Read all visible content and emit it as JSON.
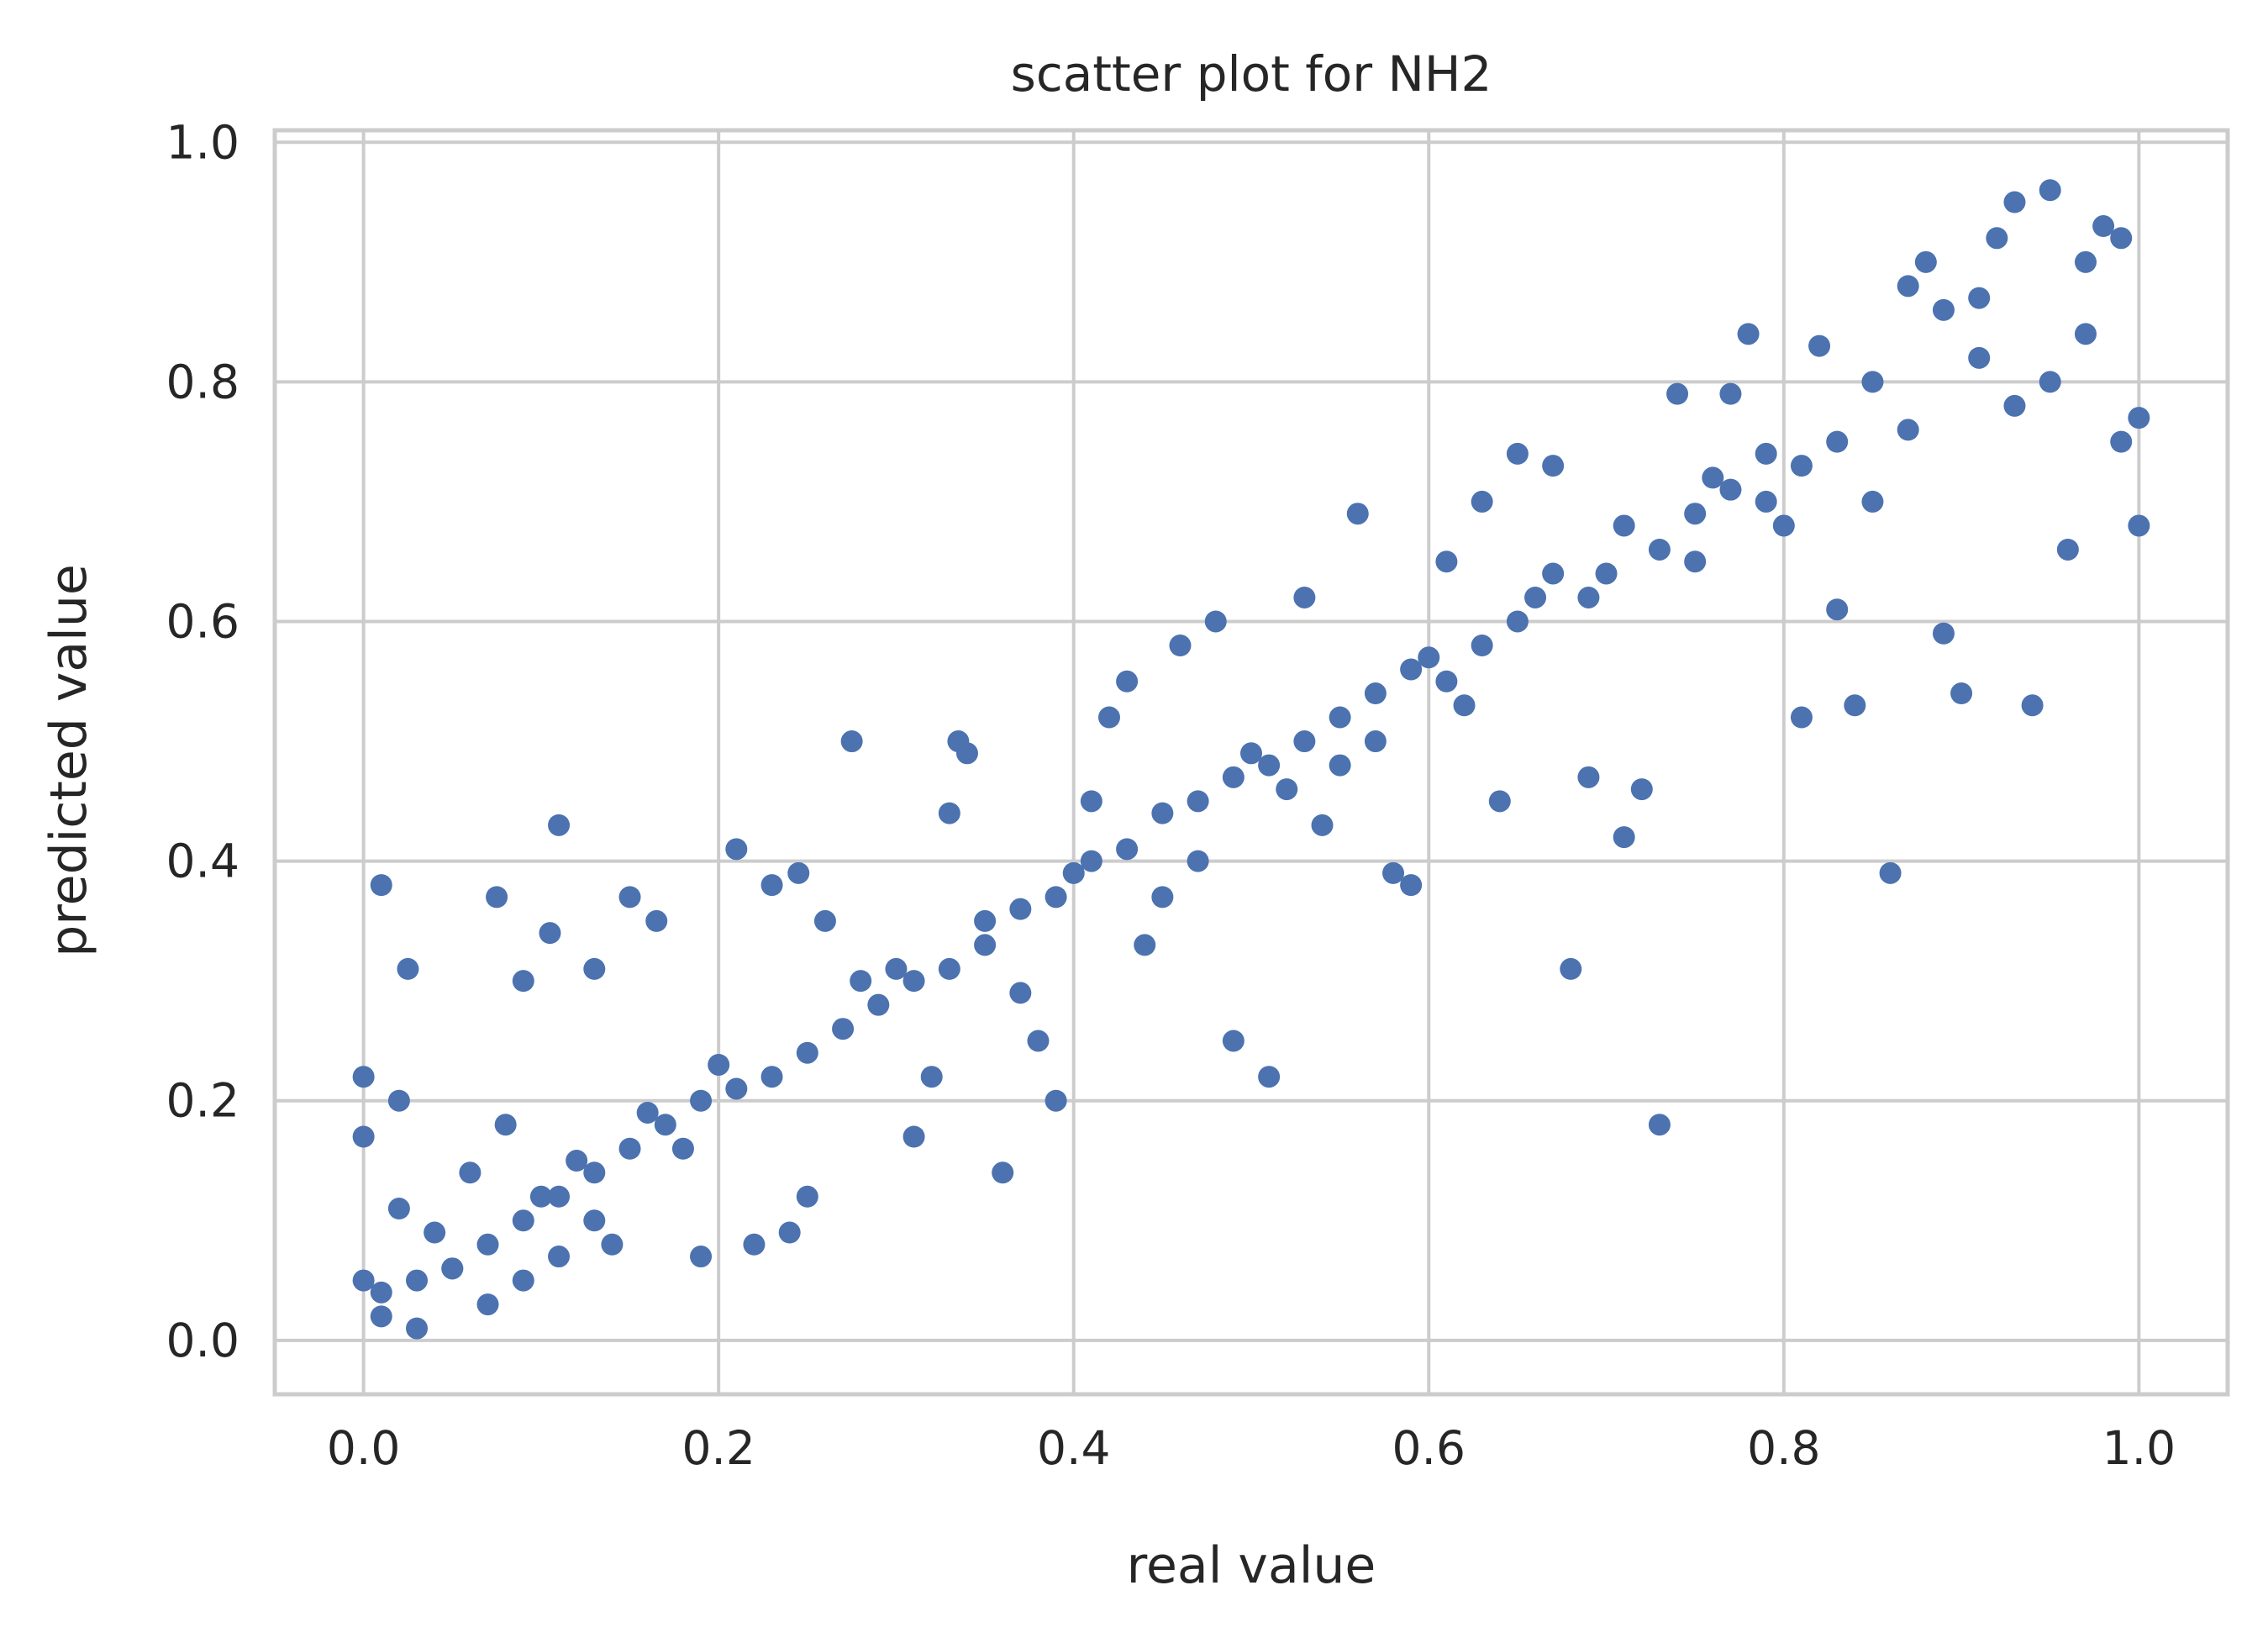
{
  "chart_data": {
    "type": "scatter",
    "title": "scatter plot for NH2",
    "xlabel": "real value",
    "ylabel": "predicted value",
    "xlim": [
      -0.05,
      1.05
    ],
    "ylim": [
      -0.045,
      1.01
    ],
    "xticks": [
      0.0,
      0.2,
      0.4,
      0.6,
      0.8,
      1.0
    ],
    "yticks": [
      0.0,
      0.2,
      0.4,
      0.6,
      0.8,
      1.0
    ],
    "xtick_labels": [
      "0.0",
      "0.2",
      "0.4",
      "0.6",
      "0.8",
      "1.0"
    ],
    "ytick_labels": [
      "0.0",
      "0.2",
      "0.4",
      "0.6",
      "0.8",
      "1.0"
    ],
    "grid": true,
    "series_color": "#4c72b0",
    "points": [
      [
        0.0,
        0.17
      ],
      [
        0.0,
        0.22
      ],
      [
        0.01,
        0.38
      ],
      [
        0.025,
        0.31
      ],
      [
        0.11,
        0.43
      ],
      [
        0.075,
        0.37
      ],
      [
        0.09,
        0.3
      ],
      [
        0.02,
        0.2
      ],
      [
        0.0,
        0.05
      ],
      [
        0.01,
        0.02
      ],
      [
        0.03,
        0.01
      ],
      [
        0.05,
        0.06
      ],
      [
        0.07,
        0.03
      ],
      [
        0.1,
        0.12
      ],
      [
        0.12,
        0.15
      ],
      [
        0.14,
        0.08
      ],
      [
        0.15,
        0.37
      ],
      [
        0.165,
        0.35
      ],
      [
        0.13,
        0.31
      ],
      [
        0.105,
        0.34
      ],
      [
        0.02,
        0.11
      ],
      [
        0.04,
        0.09
      ],
      [
        0.06,
        0.14
      ],
      [
        0.08,
        0.18
      ],
      [
        0.09,
        0.05
      ],
      [
        0.11,
        0.07
      ],
      [
        0.13,
        0.1
      ],
      [
        0.16,
        0.19
      ],
      [
        0.18,
        0.16
      ],
      [
        0.19,
        0.07
      ],
      [
        0.2,
        0.23
      ],
      [
        0.22,
        0.08
      ],
      [
        0.24,
        0.09
      ],
      [
        0.25,
        0.12
      ],
      [
        0.21,
        0.41
      ],
      [
        0.23,
        0.38
      ],
      [
        0.245,
        0.39
      ],
      [
        0.275,
        0.5
      ],
      [
        0.26,
        0.35
      ],
      [
        0.28,
        0.3
      ],
      [
        0.3,
        0.31
      ],
      [
        0.31,
        0.17
      ],
      [
        0.33,
        0.44
      ],
      [
        0.335,
        0.5
      ],
      [
        0.34,
        0.49
      ],
      [
        0.32,
        0.22
      ],
      [
        0.35,
        0.35
      ],
      [
        0.36,
        0.14
      ],
      [
        0.37,
        0.29
      ],
      [
        0.38,
        0.25
      ],
      [
        0.39,
        0.2
      ],
      [
        0.4,
        0.39
      ],
      [
        0.41,
        0.45
      ],
      [
        0.42,
        0.52
      ],
      [
        0.43,
        0.55
      ],
      [
        0.44,
        0.33
      ],
      [
        0.45,
        0.37
      ],
      [
        0.46,
        0.58
      ],
      [
        0.47,
        0.4
      ],
      [
        0.48,
        0.6
      ],
      [
        0.49,
        0.25
      ],
      [
        0.5,
        0.49
      ],
      [
        0.51,
        0.22
      ],
      [
        0.52,
        0.46
      ],
      [
        0.53,
        0.62
      ],
      [
        0.54,
        0.43
      ],
      [
        0.55,
        0.48
      ],
      [
        0.56,
        0.69
      ],
      [
        0.57,
        0.5
      ],
      [
        0.58,
        0.39
      ],
      [
        0.59,
        0.38
      ],
      [
        0.6,
        0.57
      ],
      [
        0.61,
        0.65
      ],
      [
        0.62,
        0.53
      ],
      [
        0.63,
        0.7
      ],
      [
        0.64,
        0.45
      ],
      [
        0.65,
        0.74
      ],
      [
        0.66,
        0.62
      ],
      [
        0.67,
        0.73
      ],
      [
        0.68,
        0.31
      ],
      [
        0.69,
        0.47
      ],
      [
        0.7,
        0.64
      ],
      [
        0.71,
        0.42
      ],
      [
        0.72,
        0.46
      ],
      [
        0.73,
        0.18
      ],
      [
        0.74,
        0.79
      ],
      [
        0.75,
        0.65
      ],
      [
        0.76,
        0.72
      ],
      [
        0.77,
        0.79
      ],
      [
        0.78,
        0.84
      ],
      [
        0.79,
        0.7
      ],
      [
        0.8,
        0.68
      ],
      [
        0.81,
        0.52
      ],
      [
        0.82,
        0.83
      ],
      [
        0.83,
        0.61
      ],
      [
        0.84,
        0.53
      ],
      [
        0.85,
        0.7
      ],
      [
        0.86,
        0.39
      ],
      [
        0.87,
        0.88
      ],
      [
        0.88,
        0.9
      ],
      [
        0.89,
        0.59
      ],
      [
        0.9,
        0.54
      ],
      [
        0.91,
        0.87
      ],
      [
        0.92,
        0.92
      ],
      [
        0.93,
        0.95
      ],
      [
        0.94,
        0.53
      ],
      [
        0.95,
        0.96
      ],
      [
        0.96,
        0.66
      ],
      [
        0.97,
        0.9
      ],
      [
        0.98,
        0.93
      ],
      [
        0.99,
        0.92
      ],
      [
        1.0,
        0.68
      ],
      [
        1.0,
        0.77
      ],
      [
        0.99,
        0.75
      ],
      [
        0.97,
        0.84
      ],
      [
        0.95,
        0.8
      ],
      [
        0.93,
        0.78
      ],
      [
        0.91,
        0.82
      ],
      [
        0.89,
        0.86
      ],
      [
        0.87,
        0.76
      ],
      [
        0.85,
        0.8
      ],
      [
        0.83,
        0.75
      ],
      [
        0.81,
        0.73
      ],
      [
        0.79,
        0.74
      ],
      [
        0.77,
        0.71
      ],
      [
        0.75,
        0.69
      ],
      [
        0.73,
        0.66
      ],
      [
        0.71,
        0.68
      ],
      [
        0.69,
        0.62
      ],
      [
        0.67,
        0.64
      ],
      [
        0.65,
        0.6
      ],
      [
        0.63,
        0.58
      ],
      [
        0.61,
        0.55
      ],
      [
        0.59,
        0.56
      ],
      [
        0.57,
        0.54
      ],
      [
        0.55,
        0.52
      ],
      [
        0.53,
        0.5
      ],
      [
        0.51,
        0.48
      ],
      [
        0.49,
        0.47
      ],
      [
        0.47,
        0.45
      ],
      [
        0.45,
        0.44
      ],
      [
        0.43,
        0.41
      ],
      [
        0.41,
        0.4
      ],
      [
        0.39,
        0.37
      ],
      [
        0.37,
        0.36
      ],
      [
        0.35,
        0.33
      ],
      [
        0.33,
        0.31
      ],
      [
        0.31,
        0.3
      ],
      [
        0.29,
        0.28
      ],
      [
        0.27,
        0.26
      ],
      [
        0.25,
        0.24
      ],
      [
        0.23,
        0.22
      ],
      [
        0.21,
        0.21
      ],
      [
        0.19,
        0.2
      ],
      [
        0.17,
        0.18
      ],
      [
        0.15,
        0.16
      ],
      [
        0.13,
        0.14
      ],
      [
        0.11,
        0.12
      ],
      [
        0.09,
        0.1
      ],
      [
        0.07,
        0.08
      ],
      [
        0.05,
        0.06
      ],
      [
        0.03,
        0.05
      ],
      [
        0.01,
        0.04
      ]
    ]
  }
}
